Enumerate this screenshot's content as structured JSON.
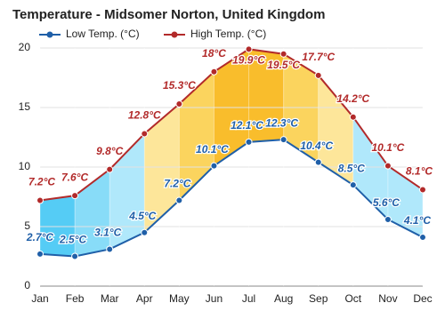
{
  "chart_data": {
    "type": "line",
    "title": "Temperature - Midsomer Norton, United Kingdom",
    "categories": [
      "Jan",
      "Feb",
      "Mar",
      "Apr",
      "May",
      "Jun",
      "Jul",
      "Aug",
      "Sep",
      "Oct",
      "Nov",
      "Dec"
    ],
    "series": [
      {
        "name": "Low Temp. (°C)",
        "color": "#1f5fa8",
        "values": [
          2.7,
          2.5,
          3.1,
          4.5,
          7.2,
          10.1,
          12.1,
          12.3,
          10.4,
          8.5,
          5.6,
          4.1
        ],
        "value_labels": [
          "2.7°C",
          "2.5°C",
          "3.1°C",
          "4.5°C",
          "7.2°C",
          "10.1°C",
          "12.1°C",
          "12.3°C",
          "10.4°C",
          "8.5°C",
          "5.6°C",
          "4.1°C"
        ]
      },
      {
        "name": "High Temp. (°C)",
        "color": "#b22a2a",
        "values": [
          7.2,
          7.6,
          9.8,
          12.8,
          15.3,
          18,
          19.9,
          19.5,
          17.7,
          14.2,
          10.1,
          8.1
        ],
        "value_labels": [
          "7.2°C",
          "7.6°C",
          "9.8°C",
          "12.8°C",
          "15.3°C",
          "18°C",
          "19.9°C",
          "19.5°C",
          "17.7°C",
          "14.2°C",
          "10.1°C",
          "8.1°C"
        ]
      }
    ],
    "ylim": [
      0,
      20
    ],
    "yticks": [
      0,
      5,
      10,
      15,
      20
    ],
    "grid": true
  }
}
